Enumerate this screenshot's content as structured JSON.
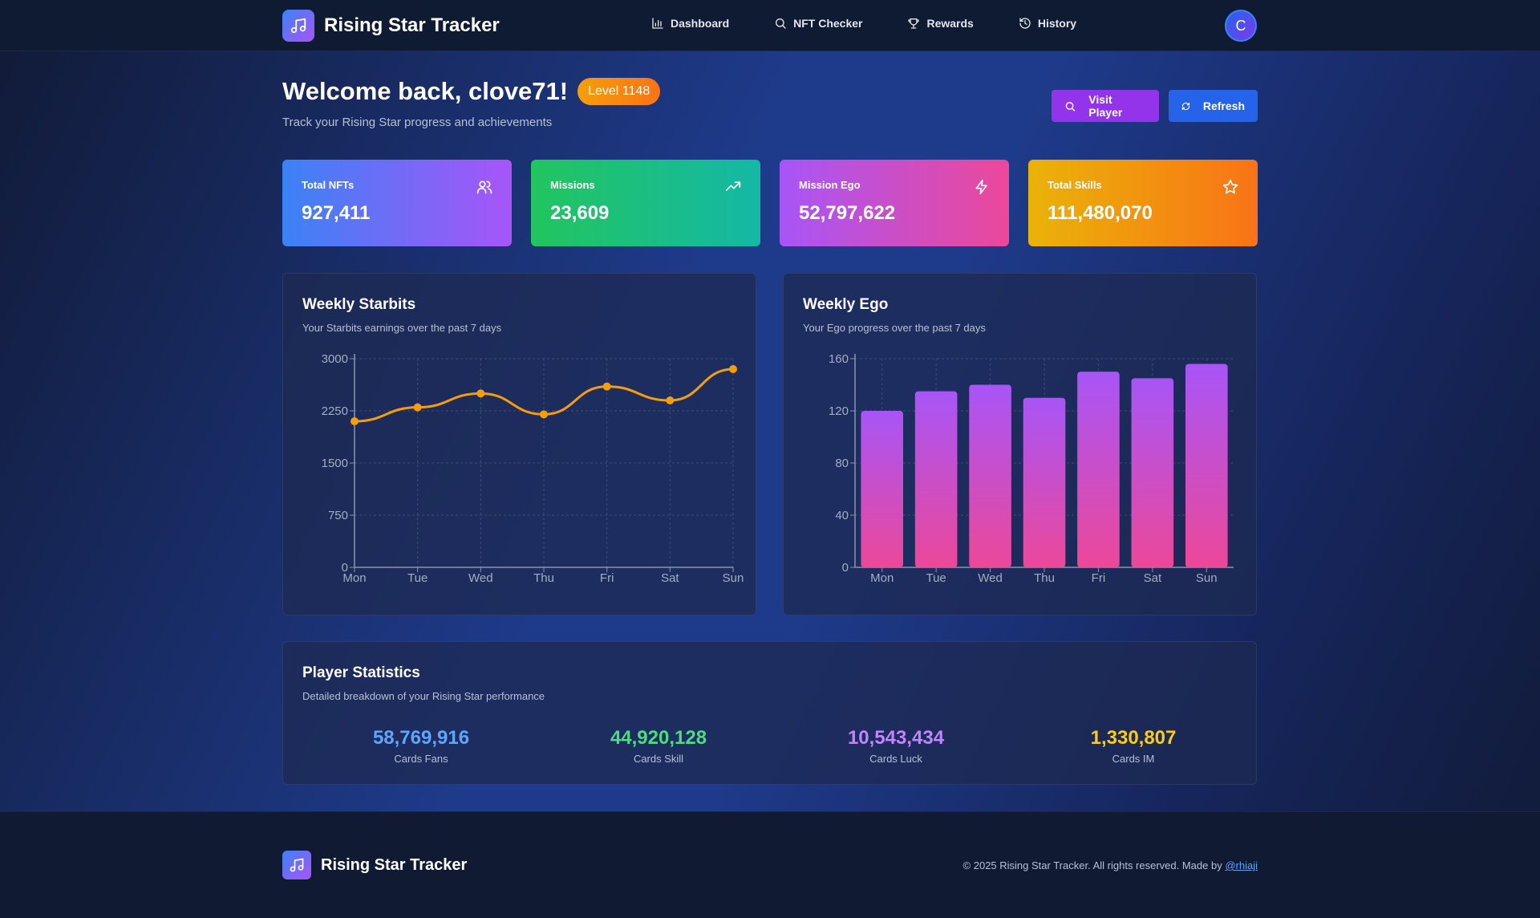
{
  "app": {
    "title": "Rising Star Tracker"
  },
  "nav": {
    "items": [
      {
        "label": "Dashboard",
        "icon": "bar-chart-icon"
      },
      {
        "label": "NFT Checker",
        "icon": "search-icon"
      },
      {
        "label": "Rewards",
        "icon": "trophy-icon"
      },
      {
        "label": "History",
        "icon": "history-icon"
      }
    ]
  },
  "user": {
    "avatar_initial": "C"
  },
  "welcome": {
    "title": "Welcome back, clove71!",
    "level": "Level 1148",
    "subtitle": "Track your Rising Star progress and achievements"
  },
  "actions": {
    "visit_label": "Visit Player",
    "refresh_label": "Refresh"
  },
  "stats_cards": [
    {
      "label": "Total NFTs",
      "value": "927,411",
      "icon": "users-icon"
    },
    {
      "label": "Missions",
      "value": "23,609",
      "icon": "trending-up-icon"
    },
    {
      "label": "Mission Ego",
      "value": "52,797,622",
      "icon": "lightning-icon"
    },
    {
      "label": "Total Skills",
      "value": "111,480,070",
      "icon": "star-icon"
    }
  ],
  "weekly_starbits": {
    "title": "Weekly Starbits",
    "subtitle": "Your Starbits earnings over the past 7 days"
  },
  "weekly_ego": {
    "title": "Weekly Ego",
    "subtitle": "Your Ego progress over the past 7 days"
  },
  "chart_data": [
    {
      "type": "line",
      "title": "Weekly Starbits",
      "x": [
        "Mon",
        "Tue",
        "Wed",
        "Thu",
        "Fri",
        "Sat",
        "Sun"
      ],
      "values": [
        2100,
        2300,
        2500,
        2200,
        2600,
        2400,
        2850
      ],
      "yticks": [
        "0",
        "750",
        "1500",
        "2250",
        "3000"
      ],
      "ylim": [
        0,
        3000
      ],
      "grid": true,
      "color": "#f59e0b"
    },
    {
      "type": "bar",
      "title": "Weekly Ego",
      "categories": [
        "Mon",
        "Tue",
        "Wed",
        "Thu",
        "Fri",
        "Sat",
        "Sun"
      ],
      "values": [
        120,
        135,
        140,
        130,
        150,
        145,
        156
      ],
      "yticks": [
        "0",
        "40",
        "80",
        "120",
        "160"
      ],
      "ylim": [
        0,
        160
      ],
      "grid": true,
      "color_top": "#a855f7",
      "color_bottom": "#ec4899"
    }
  ],
  "player_statistics": {
    "title": "Player Statistics",
    "subtitle": "Detailed breakdown of your Rising Star performance",
    "items": [
      {
        "value": "58,769,916",
        "label": "Cards Fans",
        "color": "#60a5fa"
      },
      {
        "value": "44,920,128",
        "label": "Cards Skill",
        "color": "#4ade80"
      },
      {
        "value": "10,543,434",
        "label": "Cards Luck",
        "color": "#c084fc"
      },
      {
        "value": "1,330,807",
        "label": "Cards IM",
        "color": "#facc15"
      }
    ]
  },
  "footer": {
    "brand": "Rising Star Tracker",
    "copyright": "© 2025 Rising Star Tracker. All rights reserved. Made by",
    "author_link": "@rhiaji"
  }
}
